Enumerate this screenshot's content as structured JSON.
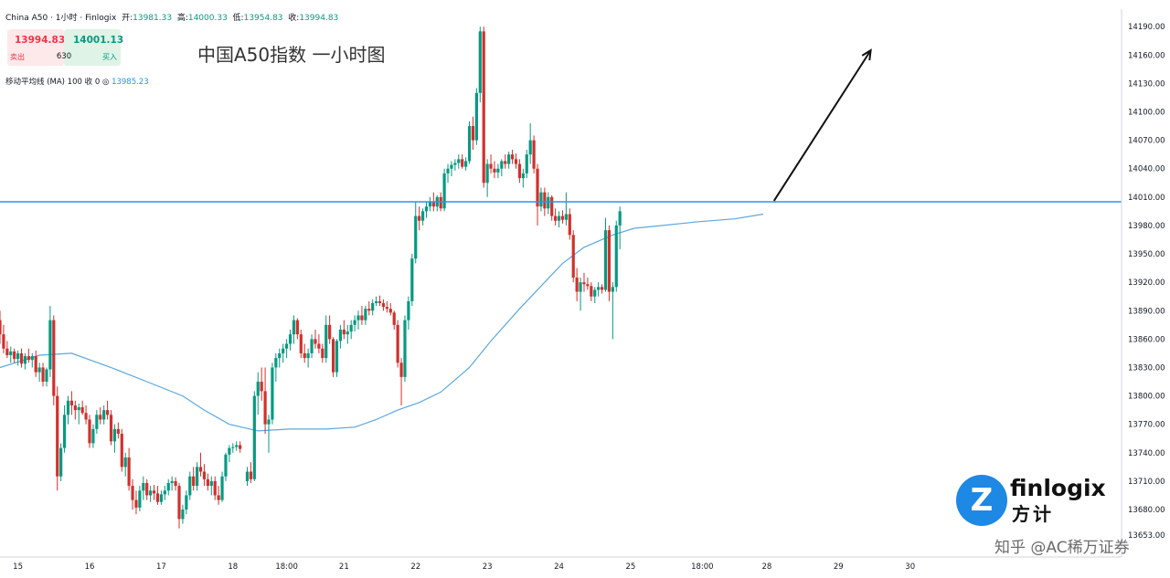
{
  "header": {
    "symbol": "China A50 · 1小时 · Finlogix",
    "open_label": "开:",
    "open": "13981.33",
    "high_label": "高:",
    "high": "14000.33",
    "low_label": "低:",
    "low": "13954.83",
    "close_label": "收:",
    "close": "13994.83"
  },
  "trade": {
    "sell_price": "13994.83",
    "sell_label": "卖出",
    "buy_price": "14001.13",
    "buy_label": "买入",
    "spread": "630"
  },
  "indicator": {
    "label": "移动平均线 (MA) 100 收 0",
    "value": "13985.23"
  },
  "annotation_title": "中国A50指数 一小时图",
  "logo": {
    "text_en": "finlogix",
    "text_cn": "方计",
    "mark": "Z"
  },
  "watermark": "知乎 @AC稀万证券",
  "colors": {
    "up": "#089981",
    "down": "#d0312d",
    "ma": "#5ba8e0",
    "level": "#2196f3",
    "arrow": "#111111"
  },
  "chart_data": {
    "type": "candlestick",
    "y_axis": {
      "min": 13653,
      "max": 14195,
      "ticks": [
        "14190.00",
        "14160.00",
        "14130.00",
        "14100.00",
        "14070.00",
        "14040.00",
        "14010.00",
        "13980.00",
        "13950.00",
        "13920.00",
        "13890.00",
        "13860.00",
        "13830.00",
        "13800.00",
        "13770.00",
        "13740.00",
        "13710.00",
        "13680.00",
        "13653.00"
      ]
    },
    "x_axis": {
      "min": 14.75,
      "max": 30.4,
      "ticks": [
        {
          "x": 15,
          "label": "15"
        },
        {
          "x": 16,
          "label": "16"
        },
        {
          "x": 17,
          "label": "17"
        },
        {
          "x": 18,
          "label": "18"
        },
        {
          "x": 18.75,
          "label": "18:00"
        },
        {
          "x": 19.55,
          "label": "21"
        },
        {
          "x": 20.55,
          "label": "22"
        },
        {
          "x": 21.55,
          "label": "23"
        },
        {
          "x": 22.55,
          "label": "24"
        },
        {
          "x": 23.55,
          "label": "25"
        },
        {
          "x": 24.55,
          "label": "18:00"
        },
        {
          "x": 25.45,
          "label": "28"
        },
        {
          "x": 26.45,
          "label": "29"
        },
        {
          "x": 27.45,
          "label": "30"
        }
      ]
    },
    "horizontal_level": 14005,
    "trend_arrow": {
      "from": [
        25.55,
        14006
      ],
      "to": [
        26.9,
        14165
      ]
    },
    "ma_series": [
      [
        14.75,
        13830
      ],
      [
        15.3,
        13843
      ],
      [
        15.75,
        13845
      ],
      [
        16.3,
        13830
      ],
      [
        16.8,
        13815
      ],
      [
        17.3,
        13800
      ],
      [
        17.6,
        13785
      ],
      [
        17.95,
        13770
      ],
      [
        18.35,
        13763
      ],
      [
        18.8,
        13765
      ],
      [
        19.3,
        13765
      ],
      [
        19.7,
        13767
      ],
      [
        20.0,
        13775
      ],
      [
        20.3,
        13785
      ],
      [
        20.6,
        13793
      ],
      [
        20.9,
        13804
      ],
      [
        21.3,
        13830
      ],
      [
        21.6,
        13858
      ],
      [
        22.0,
        13892
      ],
      [
        22.3,
        13916
      ],
      [
        22.6,
        13940
      ],
      [
        22.9,
        13957
      ],
      [
        23.3,
        13970
      ],
      [
        23.6,
        13977
      ],
      [
        24.0,
        13980
      ],
      [
        24.5,
        13984
      ],
      [
        25.0,
        13987
      ],
      [
        25.4,
        13992
      ]
    ],
    "candles": [
      [
        14.75,
        13880,
        13890,
        13855,
        13865
      ],
      [
        14.8,
        13865,
        13875,
        13845,
        13850
      ],
      [
        14.85,
        13850,
        13858,
        13840,
        13843
      ],
      [
        14.9,
        13843,
        13852,
        13835,
        13847
      ],
      [
        14.95,
        13847,
        13850,
        13835,
        13839
      ],
      [
        15.0,
        13839,
        13848,
        13832,
        13845
      ],
      [
        15.05,
        13845,
        13850,
        13830,
        13834
      ],
      [
        15.1,
        13834,
        13845,
        13828,
        13842
      ],
      [
        15.15,
        13842,
        13850,
        13835,
        13838
      ],
      [
        15.2,
        13838,
        13845,
        13830,
        13842
      ],
      [
        15.25,
        13842,
        13848,
        13820,
        13825
      ],
      [
        15.3,
        13825,
        13835,
        13815,
        13830
      ],
      [
        15.35,
        13830,
        13835,
        13810,
        13815
      ],
      [
        15.4,
        13815,
        13830,
        13810,
        13828
      ],
      [
        15.45,
        13828,
        13895,
        13820,
        13880
      ],
      [
        15.5,
        13880,
        13885,
        13790,
        13800
      ],
      [
        15.55,
        13800,
        13810,
        13700,
        13715
      ],
      [
        15.6,
        13715,
        13750,
        13710,
        13745
      ],
      [
        15.65,
        13745,
        13790,
        13740,
        13780
      ],
      [
        15.7,
        13780,
        13800,
        13770,
        13795
      ],
      [
        15.75,
        13795,
        13805,
        13780,
        13790
      ],
      [
        15.8,
        13790,
        13795,
        13775,
        13785
      ],
      [
        15.85,
        13785,
        13792,
        13770,
        13788
      ],
      [
        15.9,
        13788,
        13795,
        13780,
        13782
      ],
      [
        15.95,
        13782,
        13790,
        13770,
        13775
      ],
      [
        16.0,
        13775,
        13780,
        13745,
        13750
      ],
      [
        16.05,
        13750,
        13770,
        13745,
        13765
      ],
      [
        16.1,
        13765,
        13785,
        13760,
        13780
      ],
      [
        16.15,
        13780,
        13788,
        13770,
        13775
      ],
      [
        16.2,
        13775,
        13790,
        13770,
        13785
      ],
      [
        16.25,
        13785,
        13795,
        13775,
        13780
      ],
      [
        16.3,
        13780,
        13785,
        13748,
        13752
      ],
      [
        16.35,
        13752,
        13770,
        13740,
        13765
      ],
      [
        16.4,
        13765,
        13772,
        13755,
        13760
      ],
      [
        16.45,
        13760,
        13765,
        13720,
        13725
      ],
      [
        16.5,
        13725,
        13740,
        13715,
        13735
      ],
      [
        16.55,
        13735,
        13745,
        13700,
        13705
      ],
      [
        16.6,
        13705,
        13712,
        13680,
        13690
      ],
      [
        16.65,
        13690,
        13700,
        13675,
        13682
      ],
      [
        16.7,
        13682,
        13705,
        13678,
        13700
      ],
      [
        16.75,
        13700,
        13715,
        13690,
        13708
      ],
      [
        16.8,
        13708,
        13712,
        13690,
        13695
      ],
      [
        16.85,
        13695,
        13705,
        13688,
        13700
      ],
      [
        16.9,
        13700,
        13706,
        13690,
        13697
      ],
      [
        16.95,
        13697,
        13705,
        13685,
        13688
      ],
      [
        17.0,
        13688,
        13700,
        13685,
        13696
      ],
      [
        17.05,
        13696,
        13705,
        13690,
        13700
      ],
      [
        17.1,
        13700,
        13712,
        13695,
        13708
      ],
      [
        17.15,
        13708,
        13715,
        13700,
        13710
      ],
      [
        17.2,
        13710,
        13714,
        13700,
        13705
      ],
      [
        17.25,
        13705,
        13708,
        13660,
        13670
      ],
      [
        17.3,
        13670,
        13685,
        13665,
        13680
      ],
      [
        17.35,
        13680,
        13700,
        13675,
        13695
      ],
      [
        17.4,
        13695,
        13720,
        13690,
        13715
      ],
      [
        17.45,
        13715,
        13725,
        13700,
        13705
      ],
      [
        17.5,
        13705,
        13730,
        13700,
        13725
      ],
      [
        17.55,
        13725,
        13740,
        13715,
        13720
      ],
      [
        17.6,
        13720,
        13728,
        13705,
        13712
      ],
      [
        17.65,
        13712,
        13718,
        13700,
        13705
      ],
      [
        17.7,
        13705,
        13715,
        13695,
        13710
      ],
      [
        17.75,
        13710,
        13715,
        13690,
        13695
      ],
      [
        17.8,
        13695,
        13705,
        13685,
        13690
      ],
      [
        17.85,
        13690,
        13720,
        13688,
        13715
      ],
      [
        17.9,
        13715,
        13740,
        13710,
        13738
      ],
      [
        17.95,
        13738,
        13748,
        13730,
        13745
      ],
      [
        18.0,
        13745,
        13750,
        13740,
        13746
      ],
      [
        18.05,
        13746,
        13752,
        13742,
        13748
      ],
      [
        18.1,
        13748,
        13752,
        13740,
        13744
      ],
      [
        18.2,
        13710,
        13725,
        13705,
        13720
      ],
      [
        18.25,
        13720,
        13730,
        13708,
        13712
      ],
      [
        18.3,
        13712,
        13805,
        13710,
        13800
      ],
      [
        18.35,
        13800,
        13825,
        13780,
        13815
      ],
      [
        18.4,
        13815,
        13830,
        13795,
        13805
      ],
      [
        18.45,
        13805,
        13830,
        13760,
        13770
      ],
      [
        18.5,
        13770,
        13780,
        13740,
        13775
      ],
      [
        18.55,
        13775,
        13835,
        13770,
        13830
      ],
      [
        18.6,
        13830,
        13845,
        13815,
        13840
      ],
      [
        18.65,
        13840,
        13850,
        13830,
        13845
      ],
      [
        18.7,
        13845,
        13855,
        13835,
        13850
      ],
      [
        18.75,
        13850,
        13860,
        13840,
        13855
      ],
      [
        18.8,
        13855,
        13870,
        13848,
        13865
      ],
      [
        18.85,
        13865,
        13885,
        13855,
        13880
      ],
      [
        18.9,
        13880,
        13882,
        13860,
        13865
      ],
      [
        18.95,
        13865,
        13870,
        13840,
        13845
      ],
      [
        19.0,
        13845,
        13855,
        13835,
        13840
      ],
      [
        19.05,
        13840,
        13850,
        13830,
        13845
      ],
      [
        19.1,
        13845,
        13865,
        13840,
        13860
      ],
      [
        19.15,
        13860,
        13870,
        13850,
        13855
      ],
      [
        19.2,
        13855,
        13865,
        13845,
        13850
      ],
      [
        19.25,
        13850,
        13855,
        13835,
        13840
      ],
      [
        19.3,
        13840,
        13885,
        13835,
        13875
      ],
      [
        19.35,
        13875,
        13885,
        13855,
        13860
      ],
      [
        19.4,
        13860,
        13862,
        13820,
        13825
      ],
      [
        19.45,
        13825,
        13860,
        13820,
        13858
      ],
      [
        19.5,
        13858,
        13875,
        13850,
        13870
      ],
      [
        19.55,
        13870,
        13880,
        13860,
        13865
      ],
      [
        19.6,
        13865,
        13875,
        13855,
        13868
      ],
      [
        19.65,
        13868,
        13880,
        13860,
        13875
      ],
      [
        19.7,
        13875,
        13885,
        13868,
        13880
      ],
      [
        19.75,
        13880,
        13890,
        13870,
        13885
      ],
      [
        19.8,
        13885,
        13895,
        13875,
        13880
      ],
      [
        19.85,
        13880,
        13895,
        13875,
        13892
      ],
      [
        19.9,
        13892,
        13900,
        13885,
        13890
      ],
      [
        19.95,
        13890,
        13902,
        13885,
        13898
      ],
      [
        20.0,
        13898,
        13905,
        13895,
        13900
      ],
      [
        20.05,
        13900,
        13906,
        13895,
        13898
      ],
      [
        20.1,
        13898,
        13902,
        13890,
        13894
      ],
      [
        20.15,
        13894,
        13900,
        13888,
        13892
      ],
      [
        20.2,
        13892,
        13898,
        13885,
        13888
      ],
      [
        20.25,
        13888,
        13890,
        13870,
        13875
      ],
      [
        20.3,
        13875,
        13880,
        13830,
        13835
      ],
      [
        20.35,
        13835,
        13840,
        13790,
        13820
      ],
      [
        20.4,
        13820,
        13885,
        13815,
        13880
      ],
      [
        20.45,
        13880,
        13905,
        13870,
        13900
      ],
      [
        20.5,
        13900,
        13950,
        13895,
        13945
      ],
      [
        20.55,
        13945,
        14005,
        13940,
        13990
      ],
      [
        20.6,
        13990,
        14000,
        13975,
        13985
      ],
      [
        20.65,
        13985,
        13998,
        13980,
        13995
      ],
      [
        20.7,
        13995,
        14005,
        13988,
        14000
      ],
      [
        20.75,
        14000,
        14010,
        13995,
        14005
      ],
      [
        20.8,
        14005,
        14015,
        13995,
        14000
      ],
      [
        20.85,
        14000,
        14012,
        13995,
        14010
      ],
      [
        20.9,
        14010,
        14015,
        13995,
        13998
      ],
      [
        20.95,
        13998,
        14040,
        13995,
        14035
      ],
      [
        21.0,
        14035,
        14045,
        14025,
        14040
      ],
      [
        21.05,
        14040,
        14048,
        14032,
        14044
      ],
      [
        21.1,
        14044,
        14050,
        14038,
        14046
      ],
      [
        21.15,
        14046,
        14055,
        14040,
        14050
      ],
      [
        21.2,
        14050,
        14055,
        14040,
        14042
      ],
      [
        21.25,
        14042,
        14052,
        14038,
        14048
      ],
      [
        21.3,
        14048,
        14090,
        14045,
        14085
      ],
      [
        21.35,
        14085,
        14095,
        14060,
        14070
      ],
      [
        21.4,
        14070,
        14125,
        14065,
        14120
      ],
      [
        21.45,
        14120,
        14190,
        14110,
        14185
      ],
      [
        21.5,
        14185,
        14190,
        14020,
        14025
      ],
      [
        21.55,
        14025,
        14050,
        14010,
        14045
      ],
      [
        21.6,
        14045,
        14055,
        14035,
        14040
      ],
      [
        21.65,
        14040,
        14048,
        14030,
        14036
      ],
      [
        21.7,
        14036,
        14045,
        14030,
        14040
      ],
      [
        21.75,
        14040,
        14050,
        14032,
        14048
      ],
      [
        21.8,
        14048,
        14055,
        14040,
        14045
      ],
      [
        21.85,
        14045,
        14058,
        14040,
        14055
      ],
      [
        21.9,
        14055,
        14060,
        14045,
        14050
      ],
      [
        21.95,
        14050,
        14056,
        14040,
        14045
      ],
      [
        22.0,
        14045,
        14050,
        14025,
        14030
      ],
      [
        22.05,
        14030,
        14040,
        14020,
        14035
      ],
      [
        22.1,
        14035,
        14060,
        14030,
        14055
      ],
      [
        22.15,
        14055,
        14088,
        14045,
        14070
      ],
      [
        22.2,
        14070,
        14075,
        14035,
        14040
      ],
      [
        22.25,
        14040,
        14045,
        13980,
        14000
      ],
      [
        22.3,
        14000,
        14020,
        13995,
        14015
      ],
      [
        22.35,
        14015,
        14020,
        13990,
        13998
      ],
      [
        22.4,
        13998,
        14015,
        13992,
        14010
      ],
      [
        22.45,
        14010,
        14012,
        13985,
        13990
      ],
      [
        22.5,
        13990,
        13998,
        13980,
        13985
      ],
      [
        22.55,
        13985,
        13995,
        13978,
        13990
      ],
      [
        22.6,
        13990,
        13996,
        13982,
        13986
      ],
      [
        22.65,
        13986,
        14015,
        13980,
        13992
      ],
      [
        22.7,
        13992,
        13998,
        13965,
        13970
      ],
      [
        22.75,
        13970,
        13975,
        13920,
        13925
      ],
      [
        22.8,
        13925,
        13935,
        13900,
        13910
      ],
      [
        22.85,
        13910,
        13925,
        13890,
        13920
      ],
      [
        22.9,
        13920,
        13930,
        13910,
        13918
      ],
      [
        22.95,
        13918,
        13925,
        13912,
        13916
      ],
      [
        23.0,
        13916,
        13920,
        13900,
        13905
      ],
      [
        23.05,
        13905,
        13915,
        13898,
        13912
      ],
      [
        23.1,
        13912,
        13920,
        13905,
        13915
      ],
      [
        23.15,
        13915,
        13918,
        13908,
        13912
      ],
      [
        23.2,
        13912,
        13988,
        13910,
        13975
      ],
      [
        23.25,
        13975,
        13980,
        13900,
        13910
      ],
      [
        23.3,
        13910,
        13920,
        13860,
        13915
      ],
      [
        23.35,
        13915,
        13985,
        13910,
        13980
      ],
      [
        23.4,
        13980,
        14000,
        13955,
        13995
      ]
    ]
  }
}
